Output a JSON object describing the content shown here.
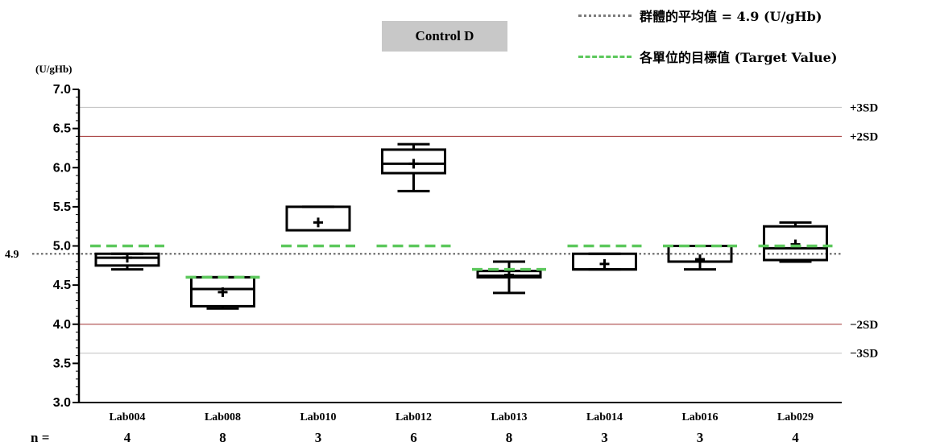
{
  "chart_data": {
    "type": "box",
    "title": "Control D",
    "ylabel": "(U/gHb)",
    "ylim": [
      3.0,
      7.0
    ],
    "yticks": [
      "3.0",
      "3.5",
      "4.0",
      "4.5",
      "5.0",
      "5.5",
      "6.0",
      "6.5",
      "7.0"
    ],
    "categories": [
      "Lab004",
      "Lab008",
      "Lab010",
      "Lab012",
      "Lab013",
      "Lab014",
      "Lab016",
      "Lab029"
    ],
    "n_label": "n =",
    "n": [
      "4",
      "8",
      "3",
      "6",
      "8",
      "3",
      "3",
      "4"
    ],
    "boxes": [
      {
        "min": 4.7,
        "q1": 4.75,
        "median": 4.85,
        "q3": 4.9,
        "max": 4.9,
        "mean": 4.85,
        "target": 5.0
      },
      {
        "min": 4.2,
        "q1": 4.23,
        "median": 4.45,
        "q3": 4.6,
        "max": 4.6,
        "mean": 4.41,
        "target": 4.6
      },
      {
        "min": 5.2,
        "q1": 5.2,
        "median": 5.2,
        "q3": 5.5,
        "max": 5.5,
        "mean": 5.3,
        "target": 5.0
      },
      {
        "min": 5.7,
        "q1": 5.93,
        "median": 6.05,
        "q3": 6.23,
        "max": 6.3,
        "mean": 6.05,
        "target": 5.0
      },
      {
        "min": 4.4,
        "q1": 4.6,
        "median": 4.62,
        "q3": 4.68,
        "max": 4.8,
        "mean": 4.63,
        "target": 4.7
      },
      {
        "min": 4.7,
        "q1": 4.7,
        "median": 4.7,
        "q3": 4.9,
        "max": 4.9,
        "mean": 4.77,
        "target": 5.0
      },
      {
        "min": 4.7,
        "q1": 4.8,
        "median": 4.8,
        "q3": 5.0,
        "max": 5.0,
        "mean": 4.83,
        "target": 5.0
      },
      {
        "min": 4.8,
        "q1": 4.82,
        "median": 4.97,
        "q3": 5.25,
        "max": 5.3,
        "mean": 5.02,
        "target": 5.0
      }
    ],
    "group_mean": {
      "value": 4.9,
      "label": "4.9"
    },
    "sd_lines": [
      {
        "label": "+3SD",
        "value": 6.77
      },
      {
        "label": "+2SD",
        "value": 6.4
      },
      {
        "label": "−2SD",
        "value": 4.0
      },
      {
        "label": "−3SD",
        "value": 3.63
      }
    ],
    "legend": [
      {
        "style": "dotted",
        "label": "群體的平均值 = 4.9 (U/gHb)"
      },
      {
        "style": "dashed",
        "label": "各單位的目標值 (Target Value)"
      }
    ],
    "colors": {
      "box": "#000000",
      "mean_line": "#7b7b7b",
      "target": "#5cc85c",
      "sd2": "#a03030",
      "sd3": "#c0c0c0"
    }
  }
}
